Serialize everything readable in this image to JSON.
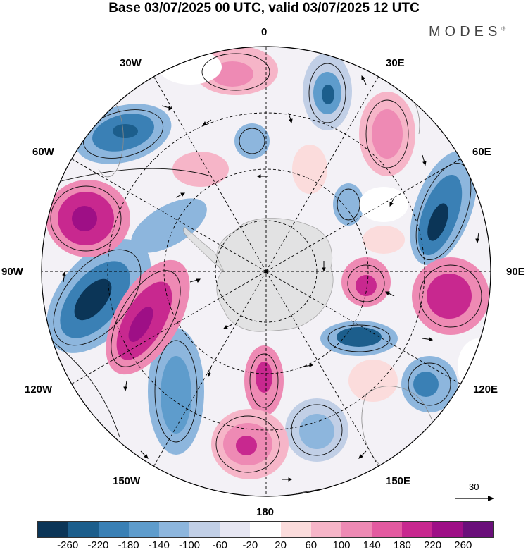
{
  "header": {
    "title": "Base 03/07/2025 00 UTC, valid 03/07/2025 12 UTC",
    "brand": "MODES",
    "brand_mark": "®"
  },
  "map": {
    "projection": "south-polar-stereographic",
    "longitude_labels": {
      "0": "0",
      "30E": "30E",
      "60E": "60E",
      "90E": "90E",
      "120E": "120E",
      "150E": "150E",
      "180": "180",
      "150W": "150W",
      "120W": "120W",
      "90W": "90W",
      "60W": "60W",
      "30W": "30W"
    },
    "reference_vector": {
      "label": "30",
      "icon": "arrow-right-icon"
    },
    "land_fill_color": "#e0e0e0"
  },
  "colorbar": {
    "colors": [
      "#0b3557",
      "#1c5e8c",
      "#3a80b5",
      "#5e9ccc",
      "#8db6dd",
      "#c1cfe6",
      "#e6e6f2",
      "#ffffff",
      "#fbdcdc",
      "#f6b5c8",
      "#ee8ab4",
      "#e35aa0",
      "#c8288f",
      "#9e0f86",
      "#6a0f7a"
    ],
    "tick_labels": [
      "-260",
      "-220",
      "-180",
      "-140",
      "-100",
      "-60",
      "-20",
      "20",
      "60",
      "100",
      "140",
      "180",
      "220",
      "260"
    ]
  }
}
